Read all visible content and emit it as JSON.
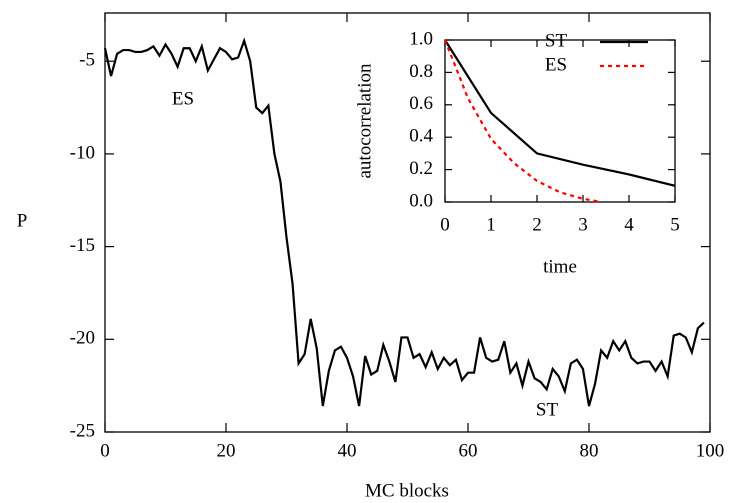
{
  "chart_data": [
    {
      "type": "line",
      "xlabel": "MC blocks",
      "ylabel": "P",
      "xlim": [
        0,
        100
      ],
      "ylim": [
        -25,
        -2.4
      ],
      "xticks": [
        0,
        20,
        40,
        60,
        80,
        100
      ],
      "yticks": [
        -25,
        -20,
        -15,
        -10,
        -5
      ],
      "annotations": [
        "ES",
        "ST"
      ],
      "series": [
        {
          "color": "#000000",
          "x": [
            0,
            1,
            2,
            3,
            4,
            5,
            6,
            7,
            8,
            9,
            10,
            11,
            12,
            13,
            14,
            15,
            16,
            17,
            18,
            19,
            20,
            21,
            22,
            23,
            24,
            25,
            26,
            27,
            28,
            29,
            30,
            31,
            32,
            33,
            34,
            35,
            36,
            37,
            38,
            39,
            40,
            41,
            42,
            43,
            44,
            45,
            46,
            47,
            48,
            49,
            50,
            51,
            52,
            53,
            54,
            55,
            56,
            57,
            58,
            59,
            60,
            61,
            62,
            63,
            64,
            65,
            66,
            67,
            68,
            69,
            70,
            71,
            72,
            73,
            74,
            75,
            76,
            77,
            78,
            79,
            80,
            81,
            82,
            83,
            84,
            85,
            86,
            87,
            88,
            89,
            90,
            91,
            92,
            93,
            94,
            95,
            96,
            97,
            98,
            99
          ],
          "values": [
            -4.3,
            -5.8,
            -4.6,
            -4.4,
            -4.4,
            -4.5,
            -4.5,
            -4.4,
            -4.2,
            -4.7,
            -4.1,
            -4.6,
            -5.3,
            -4.3,
            -4.3,
            -5.0,
            -4.2,
            -5.5,
            -4.9,
            -4.3,
            -4.5,
            -4.9,
            -4.8,
            -3.9,
            -5.0,
            -7.5,
            -7.8,
            -7.4,
            -10.0,
            -11.5,
            -14.5,
            -17.0,
            -21.3,
            -20.8,
            -18.9,
            -20.5,
            -23.6,
            -21.7,
            -20.6,
            -20.4,
            -21.0,
            -22.0,
            -23.6,
            -20.9,
            -21.9,
            -21.7,
            -20.3,
            -21.2,
            -22.3,
            -19.9,
            -19.9,
            -21.0,
            -20.8,
            -21.5,
            -20.7,
            -21.6,
            -21.0,
            -21.4,
            -21.1,
            -22.2,
            -21.8,
            -21.8,
            -19.9,
            -21.0,
            -21.2,
            -21.1,
            -20.1,
            -21.8,
            -21.3,
            -22.5,
            -21.2,
            -22.1,
            -22.3,
            -22.7,
            -21.6,
            -22.0,
            -22.8,
            -21.3,
            -21.1,
            -21.6,
            -23.6,
            -22.4,
            -20.6,
            -21.0,
            -20.1,
            -20.6,
            -20.1,
            -21.0,
            -21.3,
            -21.2,
            -21.2,
            -21.7,
            -21.2,
            -22.0,
            -19.8,
            -19.7,
            -19.9,
            -20.7,
            -19.4,
            -19.1
          ]
        }
      ]
    },
    {
      "type": "line",
      "xlabel": "time",
      "ylabel": "autocorrelation",
      "xlim": [
        0,
        5
      ],
      "ylim": [
        0,
        1
      ],
      "xticks": [
        0,
        1,
        2,
        3,
        4,
        5
      ],
      "yticks": [
        {
          "value": 0,
          "label": "0.0"
        },
        0.2,
        0.4,
        0.6,
        0.8,
        {
          "value": 1,
          "label": "1.0"
        }
      ],
      "legend": "upper right",
      "series": [
        {
          "name": "ST",
          "color": "#000000",
          "linestyle": "solid",
          "x": [
            0,
            1,
            2,
            3,
            4,
            5
          ],
          "values": [
            1.0,
            0.55,
            0.3,
            0.23,
            0.17,
            0.1
          ]
        },
        {
          "name": "ES",
          "color": "#ff0000",
          "linestyle": "dashed",
          "x": [
            0,
            0.5,
            1,
            1.5,
            2,
            2.5,
            3,
            3.4
          ],
          "values": [
            1.0,
            0.64,
            0.39,
            0.24,
            0.13,
            0.06,
            0.02,
            0
          ]
        }
      ]
    }
  ]
}
